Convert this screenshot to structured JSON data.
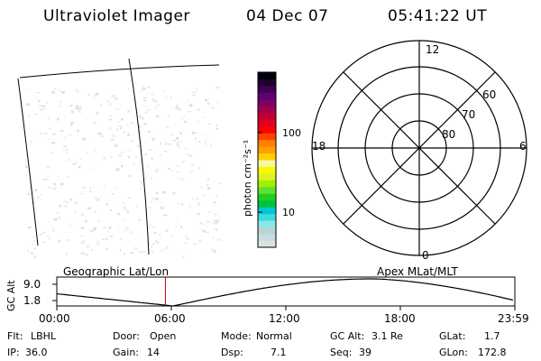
{
  "header": {
    "instrument": "Ultraviolet Imager",
    "date": "04 Dec 07",
    "time": "05:41:22 UT"
  },
  "colorbar": {
    "unit_label": "photon cm⁻²s⁻¹",
    "tick_100": "100",
    "tick_10": "10",
    "colors": [
      "#d8e4e4",
      "#c8dcdc",
      "#b8d4d4",
      "#88e8e8",
      "#40d8e0",
      "#00c8d0",
      "#00c040",
      "#20d020",
      "#60e030",
      "#a0f000",
      "#e0f020",
      "#f8f800",
      "#f8f8a0",
      "#ffd000",
      "#ffa000",
      "#ff8000",
      "#ff4000",
      "#ff0000",
      "#e00020",
      "#c00030",
      "#a00050",
      "#800060",
      "#600070",
      "#400050",
      "#200030",
      "#000010"
    ]
  },
  "polar": {
    "mlt_labels": {
      "top": "12",
      "bottom": "0",
      "left": "18",
      "right": "6"
    },
    "lat_labels": [
      "60",
      "70",
      "80"
    ]
  },
  "geo_label": "Geographic Lat/Lon",
  "apex_label": "Apex MLat/MLT",
  "altitude_plot": {
    "ylabel": "GC Alt",
    "yticks": [
      "9.0",
      "1.8"
    ],
    "xticks": [
      "00:00",
      "06:00",
      "12:00",
      "18:00",
      "23:59"
    ],
    "marker_time_hours": 5.69
  },
  "info": {
    "row1": [
      {
        "label": "Flt:",
        "value": "LBHL"
      },
      {
        "label": "Door:",
        "value": "Open"
      },
      {
        "label": "Mode:",
        "value": "Normal"
      },
      {
        "label": "GC Alt:",
        "value": "3.1 Re"
      },
      {
        "label": "GLat:",
        "value": "1.7"
      }
    ],
    "row2": [
      {
        "label": "IP:",
        "value": "36.0"
      },
      {
        "label": "Gain:",
        "value": "14"
      },
      {
        "label": "Dsp:",
        "value": "7.1"
      },
      {
        "label": "Seq:",
        "value": "39"
      },
      {
        "label": "GLon:",
        "value": "172.8"
      }
    ]
  }
}
